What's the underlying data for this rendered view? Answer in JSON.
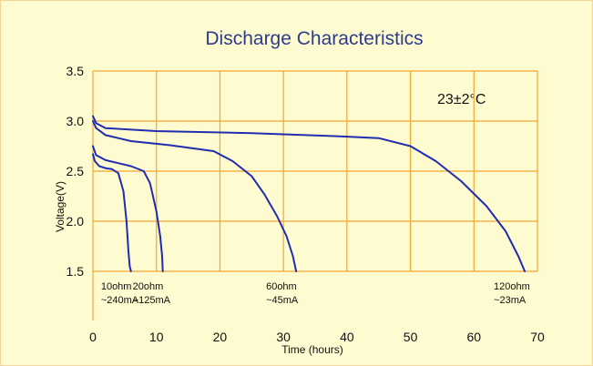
{
  "chart_data": {
    "type": "line",
    "title": "Discharge Characteristics",
    "xlabel": "Time (hours)",
    "ylabel": "Voltage(V)",
    "xlim": [
      0,
      70
    ],
    "ylim": [
      1.5,
      3.5
    ],
    "xticks": [
      0,
      10,
      20,
      30,
      40,
      50,
      60,
      70
    ],
    "yticks": [
      1.5,
      2.0,
      2.5,
      3.0,
      3.5
    ],
    "ytick_labels": [
      "1.5",
      "2.0",
      "2.5",
      "3.0",
      "3.5"
    ],
    "temperature_note": "23±2°C",
    "grid": true,
    "colors": {
      "curve": "#1f2db0",
      "grid": "#f2a630",
      "title": "#2e3c8c",
      "background": "#fffbd0"
    },
    "series": [
      {
        "annotation": [
          "10ohm",
          "~240mA"
        ],
        "x": [
          0,
          0.3,
          1,
          2,
          3,
          4,
          4.8,
          5.3,
          5.6,
          5.8,
          6.0
        ],
        "y": [
          2.67,
          2.6,
          2.55,
          2.53,
          2.52,
          2.48,
          2.3,
          2.0,
          1.7,
          1.55,
          1.5
        ]
      },
      {
        "annotation": [
          "20ohm",
          "~125mA"
        ],
        "x": [
          0,
          0.5,
          2,
          4,
          6,
          8,
          9,
          10,
          10.6,
          10.9,
          11.0
        ],
        "y": [
          2.75,
          2.66,
          2.61,
          2.58,
          2.55,
          2.5,
          2.38,
          2.1,
          1.85,
          1.65,
          1.5
        ]
      },
      {
        "annotation": [
          "60ohm",
          "~45mA"
        ],
        "x": [
          0,
          0.5,
          2,
          6,
          12,
          19,
          22,
          25,
          27,
          29,
          30.5,
          31.5,
          32.0
        ],
        "y": [
          3.0,
          2.93,
          2.86,
          2.8,
          2.76,
          2.7,
          2.6,
          2.45,
          2.27,
          2.05,
          1.85,
          1.65,
          1.5
        ]
      },
      {
        "annotation": [
          "120ohm",
          "~23mA"
        ],
        "x": [
          0,
          0.5,
          2,
          10,
          25,
          38,
          45,
          50,
          54,
          58,
          62,
          65,
          67,
          68
        ],
        "y": [
          3.05,
          2.98,
          2.93,
          2.9,
          2.88,
          2.85,
          2.83,
          2.75,
          2.6,
          2.4,
          2.15,
          1.9,
          1.65,
          1.5
        ]
      }
    ]
  }
}
